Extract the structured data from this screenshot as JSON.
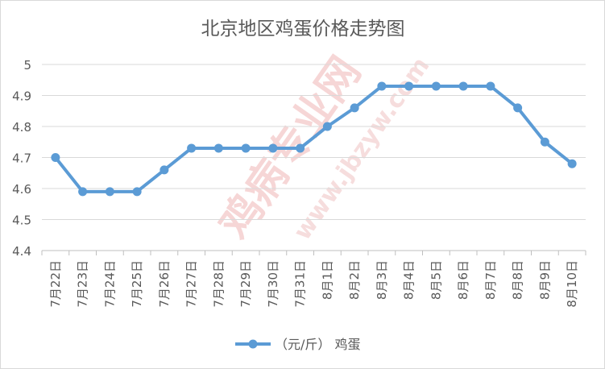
{
  "chart_data": {
    "type": "line",
    "title": "北京地区鸡蛋价格走势图",
    "categories": [
      "7月22日",
      "7月23日",
      "7月24日",
      "7月25日",
      "7月26日",
      "7月27日",
      "7月28日",
      "7月29日",
      "7月30日",
      "7月31日",
      "8月1日",
      "8月2日",
      "8月3日",
      "8月4日",
      "8月5日",
      "8月6日",
      "8月7日",
      "8月8日",
      "8月9日",
      "8月10日"
    ],
    "series": [
      {
        "name": "（元/斤） 鸡蛋",
        "color": "#5b9bd5",
        "values": [
          4.7,
          4.59,
          4.59,
          4.59,
          4.66,
          4.73,
          4.73,
          4.73,
          4.73,
          4.73,
          4.8,
          4.86,
          4.93,
          4.93,
          4.93,
          4.93,
          4.93,
          4.86,
          4.75,
          4.68
        ]
      }
    ],
    "ylim": [
      4.4,
      5.0
    ],
    "yticks": [
      "4.4",
      "4.5",
      "4.6",
      "4.7",
      "4.8",
      "4.9",
      "5"
    ],
    "grid": true,
    "legend_position": "bottom"
  },
  "watermark": {
    "text_main": "鸡病专业网",
    "text_url": "www.jbzyw.com",
    "color": "#f2b8b8"
  }
}
